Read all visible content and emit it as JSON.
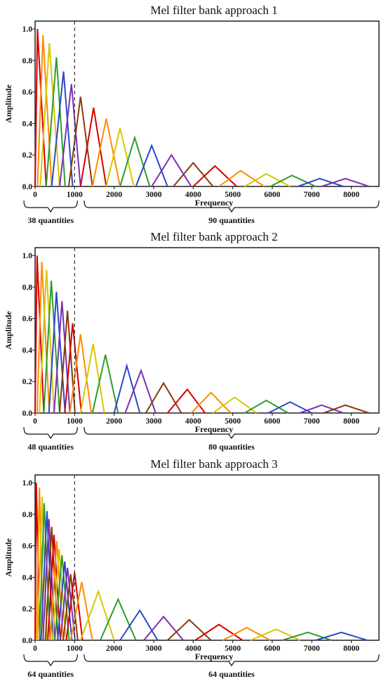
{
  "chart_data": [
    {
      "type": "line",
      "title": "Mel filter bank approach 1",
      "xlabel": "Frequency",
      "ylabel": "Amplitude",
      "xlim": [
        0,
        8700
      ],
      "ylim": [
        0,
        1.05
      ],
      "xticks": [
        "0",
        "1000",
        "2000",
        "3000",
        "4000",
        "5000",
        "6000",
        "7000",
        "8000"
      ],
      "yticks": [
        "0.0",
        "0.2",
        "0.4",
        "0.6",
        "0.8",
        "1.0"
      ],
      "divider_x": 1000,
      "groups": [
        {
          "label": "38 quantities",
          "range": [
            0,
            1000
          ]
        },
        {
          "label": "90 quantities",
          "range": [
            1100,
            8700
          ]
        }
      ],
      "filters": [
        {
          "left": 0,
          "peak": 60,
          "right": 280,
          "height": 1.0
        },
        {
          "left": 60,
          "peak": 200,
          "right": 420,
          "height": 0.96
        },
        {
          "left": 130,
          "peak": 360,
          "right": 620,
          "height": 0.91
        },
        {
          "left": 280,
          "peak": 540,
          "right": 760,
          "height": 0.82
        },
        {
          "left": 420,
          "peak": 720,
          "right": 950,
          "height": 0.73
        },
        {
          "left": 620,
          "peak": 920,
          "right": 1150,
          "height": 0.65
        },
        {
          "left": 850,
          "peak": 1150,
          "right": 1450,
          "height": 0.57
        },
        {
          "left": 1150,
          "peak": 1480,
          "right": 1800,
          "height": 0.5
        },
        {
          "left": 1450,
          "peak": 1800,
          "right": 2150,
          "height": 0.43
        },
        {
          "left": 1800,
          "peak": 2150,
          "right": 2500,
          "height": 0.37
        },
        {
          "left": 2150,
          "peak": 2520,
          "right": 2900,
          "height": 0.31
        },
        {
          "left": 2550,
          "peak": 2950,
          "right": 3350,
          "height": 0.26
        },
        {
          "left": 2950,
          "peak": 3450,
          "right": 3950,
          "height": 0.2
        },
        {
          "left": 3500,
          "peak": 4000,
          "right": 4500,
          "height": 0.15
        },
        {
          "left": 4000,
          "peak": 4550,
          "right": 5100,
          "height": 0.13
        },
        {
          "left": 4650,
          "peak": 5200,
          "right": 5800,
          "height": 0.1
        },
        {
          "left": 5300,
          "peak": 5850,
          "right": 6450,
          "height": 0.08
        },
        {
          "left": 5950,
          "peak": 6500,
          "right": 7100,
          "height": 0.07
        },
        {
          "left": 6650,
          "peak": 7200,
          "right": 7800,
          "height": 0.05
        },
        {
          "left": 7250,
          "peak": 7850,
          "right": 8450,
          "height": 0.05
        }
      ]
    },
    {
      "type": "line",
      "title": "Mel filter bank approach 2",
      "xlabel": "Frequency",
      "ylabel": "Amplitude",
      "xlim": [
        0,
        8700
      ],
      "ylim": [
        0,
        1.05
      ],
      "xticks": [
        "0",
        "1000",
        "2000",
        "3000",
        "4000",
        "5000",
        "6000",
        "7000",
        "8000"
      ],
      "yticks": [
        "0.0",
        "0.2",
        "0.4",
        "0.6",
        "0.8",
        "1.0"
      ],
      "divider_x": 1000,
      "groups": [
        {
          "label": "48 quantities",
          "range": [
            0,
            1000
          ]
        },
        {
          "label": "80 quantities",
          "range": [
            1100,
            8700
          ]
        }
      ],
      "filters": [
        {
          "left": 0,
          "peak": 50,
          "right": 220,
          "height": 1.0
        },
        {
          "left": 50,
          "peak": 170,
          "right": 360,
          "height": 0.96
        },
        {
          "left": 110,
          "peak": 290,
          "right": 480,
          "height": 0.91
        },
        {
          "left": 220,
          "peak": 410,
          "right": 620,
          "height": 0.84
        },
        {
          "left": 350,
          "peak": 540,
          "right": 760,
          "height": 0.77
        },
        {
          "left": 480,
          "peak": 680,
          "right": 880,
          "height": 0.71
        },
        {
          "left": 620,
          "peak": 820,
          "right": 1010,
          "height": 0.65
        },
        {
          "left": 750,
          "peak": 950,
          "right": 1170,
          "height": 0.57
        },
        {
          "left": 880,
          "peak": 1150,
          "right": 1420,
          "height": 0.5
        },
        {
          "left": 1150,
          "peak": 1470,
          "right": 1750,
          "height": 0.44
        },
        {
          "left": 1450,
          "peak": 1780,
          "right": 2100,
          "height": 0.37
        },
        {
          "left": 2000,
          "peak": 2320,
          "right": 2650,
          "height": 0.3
        },
        {
          "left": 2280,
          "peak": 2680,
          "right": 3050,
          "height": 0.27
        },
        {
          "left": 2800,
          "peak": 3250,
          "right": 3700,
          "height": 0.19
        },
        {
          "left": 3350,
          "peak": 3850,
          "right": 4300,
          "height": 0.15
        },
        {
          "left": 3950,
          "peak": 4450,
          "right": 4950,
          "height": 0.13
        },
        {
          "left": 4500,
          "peak": 5050,
          "right": 5600,
          "height": 0.1
        },
        {
          "left": 5300,
          "peak": 5850,
          "right": 6400,
          "height": 0.08
        },
        {
          "left": 5900,
          "peak": 6450,
          "right": 7000,
          "height": 0.07
        },
        {
          "left": 6700,
          "peak": 7250,
          "right": 7800,
          "height": 0.05
        },
        {
          "left": 7300,
          "peak": 7850,
          "right": 8450,
          "height": 0.05
        }
      ]
    },
    {
      "type": "line",
      "title": "Mel filter bank approach 3",
      "xlabel": "Frequency",
      "ylabel": "Amplitude",
      "xlim": [
        0,
        8700
      ],
      "ylim": [
        0,
        1.05
      ],
      "xticks": [
        "0",
        "1000",
        "2000",
        "3000",
        "4000",
        "5000",
        "6000",
        "7000",
        "8000"
      ],
      "yticks": [
        "0.0",
        "0.2",
        "0.4",
        "0.6",
        "0.8",
        "1.0"
      ],
      "divider_x": 1000,
      "groups": [
        {
          "label": "64 quantities",
          "range": [
            0,
            1000
          ]
        },
        {
          "label": "64 quantities",
          "range": [
            1100,
            8700
          ]
        }
      ],
      "filters": [
        {
          "left": 0,
          "peak": 30,
          "right": 120,
          "height": 1.0
        },
        {
          "left": 30,
          "peak": 110,
          "right": 210,
          "height": 0.97
        },
        {
          "left": 60,
          "peak": 180,
          "right": 300,
          "height": 0.91
        },
        {
          "left": 110,
          "peak": 230,
          "right": 380,
          "height": 0.87
        },
        {
          "left": 150,
          "peak": 300,
          "right": 450,
          "height": 0.82
        },
        {
          "left": 200,
          "peak": 350,
          "right": 500,
          "height": 0.77
        },
        {
          "left": 260,
          "peak": 420,
          "right": 580,
          "height": 0.72
        },
        {
          "left": 320,
          "peak": 480,
          "right": 640,
          "height": 0.67
        },
        {
          "left": 380,
          "peak": 550,
          "right": 710,
          "height": 0.63
        },
        {
          "left": 440,
          "peak": 610,
          "right": 780,
          "height": 0.58
        },
        {
          "left": 500,
          "peak": 680,
          "right": 860,
          "height": 0.54
        },
        {
          "left": 570,
          "peak": 750,
          "right": 930,
          "height": 0.5
        },
        {
          "left": 640,
          "peak": 820,
          "right": 1010,
          "height": 0.46
        },
        {
          "left": 710,
          "peak": 900,
          "right": 1080,
          "height": 0.42
        },
        {
          "left": 790,
          "peak": 1000,
          "right": 1200,
          "height": 0.43
        },
        {
          "left": 900,
          "peak": 1180,
          "right": 1450,
          "height": 0.37
        },
        {
          "left": 1150,
          "peak": 1600,
          "right": 2000,
          "height": 0.31
        },
        {
          "left": 1650,
          "peak": 2100,
          "right": 2550,
          "height": 0.26
        },
        {
          "left": 2150,
          "peak": 2650,
          "right": 3100,
          "height": 0.19
        },
        {
          "left": 2750,
          "peak": 3250,
          "right": 3750,
          "height": 0.15
        },
        {
          "left": 3350,
          "peak": 3900,
          "right": 4450,
          "height": 0.13
        },
        {
          "left": 4050,
          "peak": 4650,
          "right": 5250,
          "height": 0.1
        },
        {
          "left": 4750,
          "peak": 5350,
          "right": 5950,
          "height": 0.08
        },
        {
          "left": 5450,
          "peak": 6100,
          "right": 6700,
          "height": 0.07
        },
        {
          "left": 6250,
          "peak": 6900,
          "right": 7500,
          "height": 0.05
        },
        {
          "left": 7100,
          "peak": 7750,
          "right": 8400,
          "height": 0.05
        }
      ]
    }
  ],
  "palette": [
    "#d40000",
    "#ff8c00",
    "#d6c800",
    "#2e9e2e",
    "#2b49c8",
    "#7a2fb5",
    "#8b3a0a"
  ]
}
